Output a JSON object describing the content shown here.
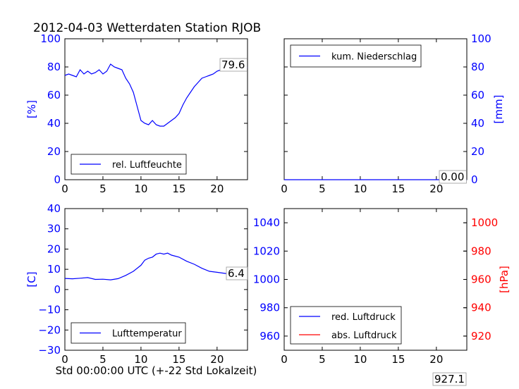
{
  "title": "2012-04-03 Wetterdaten Station RJOB",
  "colors": {
    "left_axis": "#0000ff",
    "right_axis": "#ff0000",
    "line_blue": "#0000ff",
    "line_red": "#ff0000"
  },
  "chart_data": [
    {
      "id": "humidity",
      "type": "line",
      "xlim": [
        0,
        24
      ],
      "ylim": [
        0,
        100
      ],
      "xticks": [
        "0",
        "5",
        "10",
        "15",
        "20"
      ],
      "yticks": [
        "0",
        "20",
        "40",
        "60",
        "80",
        "100"
      ],
      "ylabel": "[%]",
      "legend": "rel. Luftfeuchte",
      "legend_loc": "lower-left",
      "last_value_label": "79.6",
      "x": [
        0,
        0.5,
        1,
        1.5,
        2,
        2.5,
        3,
        3.5,
        4,
        4.5,
        5,
        5.5,
        6,
        6.5,
        7,
        7.5,
        8,
        8.5,
        9,
        9.5,
        10,
        10.5,
        11,
        11.5,
        12,
        12.5,
        13,
        13.5,
        14,
        14.5,
        15,
        15.5,
        16,
        16.5,
        17,
        17.5,
        18,
        18.5,
        19,
        19.5,
        20,
        20.5,
        21,
        21.5,
        22,
        22.5,
        23,
        23.5,
        24
      ],
      "y": [
        74,
        75,
        74,
        73,
        78,
        75,
        77,
        75,
        76,
        78,
        75,
        77,
        82,
        80,
        79,
        78,
        72,
        68,
        62,
        52,
        42,
        40,
        39,
        42,
        39,
        38,
        38,
        40,
        42,
        44,
        47,
        53,
        58,
        62,
        66,
        69,
        72,
        73,
        74,
        75,
        77,
        78,
        78,
        79,
        79,
        79,
        79.5,
        79.6,
        79.6
      ]
    },
    {
      "id": "precip",
      "type": "line",
      "xlim": [
        0,
        24
      ],
      "ylim": [
        0,
        100
      ],
      "xticks": [
        "0",
        "5",
        "10",
        "15",
        "20"
      ],
      "yticks": [
        "0",
        "20",
        "40",
        "60",
        "80",
        "100"
      ],
      "ylabel": "[mm]",
      "y_axis_side": "right",
      "legend": "kum. Niederschlag",
      "legend_loc": "upper-left",
      "last_value_label": "0.00",
      "x": [
        0,
        24
      ],
      "y": [
        0,
        0
      ]
    },
    {
      "id": "temperature",
      "type": "line",
      "xlim": [
        0,
        24
      ],
      "ylim": [
        -30,
        40
      ],
      "xticks": [
        "0",
        "5",
        "10",
        "15",
        "20"
      ],
      "yticks": [
        "−30",
        "−20",
        "−10",
        "0",
        "10",
        "20",
        "30",
        "40"
      ],
      "ylabel": "[C]",
      "xlabel": "Std 00:00:00 UTC (+-22 Std Lokalzeit)",
      "legend": "Lufttemperatur",
      "legend_loc": "lower-left",
      "last_value_label": "6.4",
      "x": [
        0,
        1,
        2,
        3,
        4,
        5,
        6,
        7,
        8,
        9,
        10,
        10.5,
        11,
        11.5,
        12,
        12.5,
        13,
        13.5,
        14,
        15,
        16,
        17,
        18,
        19,
        20,
        21,
        22,
        23,
        24
      ],
      "y": [
        5.5,
        5.3,
        5.6,
        5.9,
        5.0,
        5.1,
        4.8,
        5.4,
        7.0,
        9.0,
        12.0,
        14.5,
        15.5,
        16.0,
        17.5,
        18.0,
        17.5,
        18.0,
        17.0,
        16.0,
        14.0,
        12.5,
        10.5,
        9.0,
        8.5,
        8.0,
        7.5,
        7.0,
        6.4
      ]
    },
    {
      "id": "pressure",
      "type": "line",
      "xlim": [
        0,
        24
      ],
      "ylim": [
        950,
        1050
      ],
      "ylim_right": [
        910,
        1010
      ],
      "xticks": [
        "0",
        "5",
        "10",
        "15",
        "20"
      ],
      "yticks": [
        "960",
        "980",
        "1000",
        "1020",
        "1040"
      ],
      "yticks_right": [
        "920",
        "940",
        "960",
        "980",
        "1000"
      ],
      "ylabel_right": "[hPa]",
      "legend": [
        "red. Luftdruck",
        "abs. Luftdruck"
      ],
      "legend_loc": "lower-left",
      "last_value_label": "927.1"
    }
  ]
}
